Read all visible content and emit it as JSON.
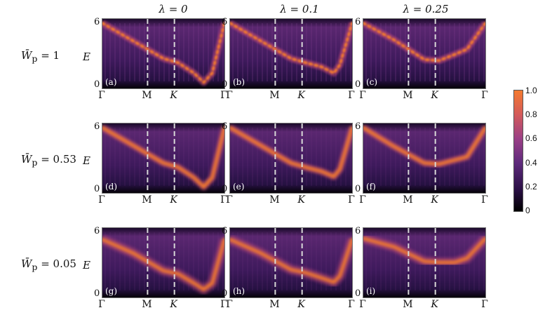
{
  "figure": {
    "y_axis_label": "E",
    "y_ticks": [
      "6",
      "0"
    ],
    "x_ticks": [
      "Γ",
      "M",
      "K",
      "Γ"
    ],
    "column_titles": [
      "λ = 0",
      "λ = 0.1",
      "λ = 0.25"
    ],
    "row_labels": [
      {
        "symbol": "W̄",
        "sub": "p",
        "text": " = 1"
      },
      {
        "symbol": "W̄",
        "sub": "p",
        "text": " = 0.53"
      },
      {
        "symbol": "W̄",
        "sub": "p",
        "text": " = 0.05"
      }
    ],
    "panel_tags": [
      "(a)",
      "(b)",
      "(c)",
      "(d)",
      "(e)",
      "(f)",
      "(g)",
      "(h)",
      "(i)"
    ],
    "colorbar": {
      "ticks": [
        "1.0",
        "0.8",
        "0.6",
        "0.4",
        "0.2",
        "0"
      ],
      "range": [
        0,
        1
      ]
    }
  },
  "chart_data": {
    "type": "heatmap",
    "xlabel": "",
    "ylabel": "E",
    "ylim": [
      0,
      6
    ],
    "x_points": [
      "Γ",
      "M",
      "K",
      "Γ"
    ],
    "colormap": [
      "#000000",
      "#2a0f45",
      "#5e2a7c",
      "#9a3f86",
      "#d35a5a",
      "#f47a2f"
    ],
    "colorbar_range": [
      0,
      1
    ],
    "panels": [
      {
        "tag": "(a)",
        "lambda": 0,
        "Wp": 1,
        "band": [
          [
            0,
            6
          ],
          [
            0.25,
            4.3
          ],
          [
            0.5,
            2.6
          ],
          [
            0.62,
            2.2
          ],
          [
            0.75,
            1.2
          ],
          [
            0.83,
            0.3
          ],
          [
            0.9,
            1.2
          ],
          [
            1,
            6
          ]
        ]
      },
      {
        "tag": "(b)",
        "lambda": 0.1,
        "Wp": 1,
        "band": [
          [
            0,
            6
          ],
          [
            0.25,
            4.3
          ],
          [
            0.5,
            2.6
          ],
          [
            0.62,
            2.2
          ],
          [
            0.75,
            1.8
          ],
          [
            0.85,
            1.2
          ],
          [
            0.9,
            2.0
          ],
          [
            1,
            6
          ]
        ]
      },
      {
        "tag": "(c)",
        "lambda": 0.25,
        "Wp": 1,
        "band": [
          [
            0,
            6
          ],
          [
            0.25,
            4.4
          ],
          [
            0.5,
            2.5
          ],
          [
            0.62,
            2.4
          ],
          [
            0.75,
            3.0
          ],
          [
            0.85,
            3.5
          ],
          [
            1,
            6
          ]
        ]
      },
      {
        "tag": "(d)",
        "lambda": 0,
        "Wp": 0.53,
        "band": [
          [
            0,
            6
          ],
          [
            0.25,
            4.3
          ],
          [
            0.5,
            2.6
          ],
          [
            0.62,
            2.2
          ],
          [
            0.75,
            1.2
          ],
          [
            0.83,
            0.3
          ],
          [
            0.9,
            1.2
          ],
          [
            1,
            6
          ]
        ]
      },
      {
        "tag": "(e)",
        "lambda": 0.1,
        "Wp": 0.53,
        "band": [
          [
            0,
            6
          ],
          [
            0.25,
            4.3
          ],
          [
            0.5,
            2.6
          ],
          [
            0.62,
            2.2
          ],
          [
            0.75,
            1.8
          ],
          [
            0.85,
            1.3
          ],
          [
            0.9,
            2.0
          ],
          [
            1,
            6
          ]
        ]
      },
      {
        "tag": "(f)",
        "lambda": 0.25,
        "Wp": 0.53,
        "band": [
          [
            0,
            6
          ],
          [
            0.25,
            4.2
          ],
          [
            0.5,
            2.6
          ],
          [
            0.62,
            2.5
          ],
          [
            0.75,
            2.9
          ],
          [
            0.85,
            3.2
          ],
          [
            1,
            6
          ]
        ]
      },
      {
        "tag": "(g)",
        "lambda": 0,
        "Wp": 0.05,
        "band": [
          [
            0,
            5.3
          ],
          [
            0.25,
            4.0
          ],
          [
            0.5,
            2.3
          ],
          [
            0.62,
            2.0
          ],
          [
            0.75,
            1.1
          ],
          [
            0.83,
            0.5
          ],
          [
            0.9,
            1.1
          ],
          [
            1,
            5.3
          ]
        ]
      },
      {
        "tag": "(h)",
        "lambda": 0.1,
        "Wp": 0.05,
        "band": [
          [
            0,
            5.3
          ],
          [
            0.25,
            4.0
          ],
          [
            0.5,
            2.4
          ],
          [
            0.62,
            2.1
          ],
          [
            0.75,
            1.6
          ],
          [
            0.85,
            1.2
          ],
          [
            0.9,
            1.8
          ],
          [
            1,
            5.3
          ]
        ]
      },
      {
        "tag": "(i)",
        "lambda": 0.25,
        "Wp": 0.05,
        "band": [
          [
            0,
            5.4
          ],
          [
            0.25,
            4.6
          ],
          [
            0.5,
            3.2
          ],
          [
            0.62,
            3.1
          ],
          [
            0.75,
            3.1
          ],
          [
            0.85,
            3.5
          ],
          [
            1,
            5.4
          ]
        ]
      }
    ]
  }
}
